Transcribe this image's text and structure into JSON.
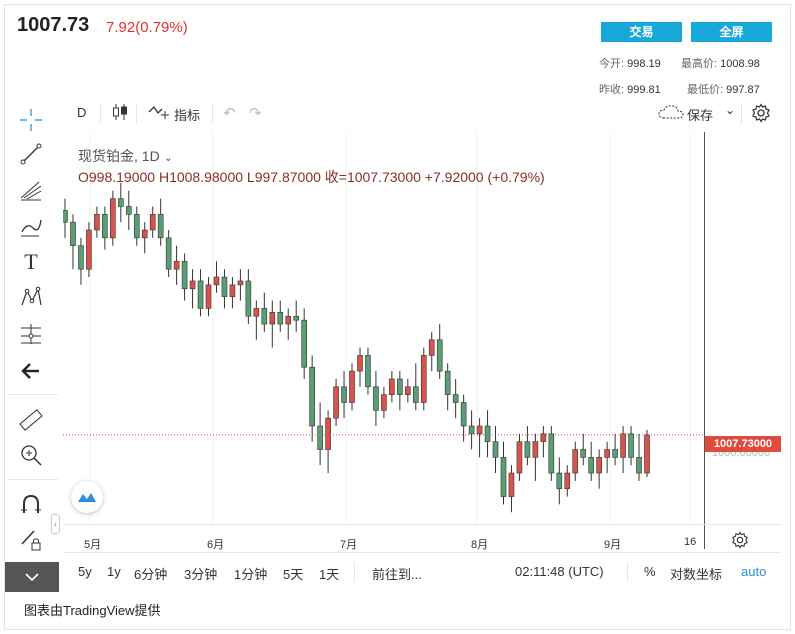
{
  "header": {
    "price": "1007.73",
    "change": "7.92(0.79%)",
    "trade_button": "交易",
    "fullscreen_button": "全屏",
    "stats": {
      "open_label": "今开:",
      "open_value": "998.19",
      "high_label": "最高价:",
      "high_value": "1008.98",
      "prev_close_label": "昨收:",
      "prev_close_value": "999.81",
      "low_label": "最低价:",
      "low_value": "997.87"
    }
  },
  "toolbar": {
    "interval": "D",
    "indicators": "指标",
    "save": "保存"
  },
  "legend": {
    "title": "现货铂金, 1D",
    "ohlc": "O998.19000  H1008.98000  L997.87000  收=1007.73000  +7.92000 (+0.79%)"
  },
  "price_axis": {
    "last_price_tag": "1007.73000",
    "hidden_price": "1000.00000"
  },
  "x_axis_ticks": [
    "5月",
    "6月",
    "7月",
    "8月",
    "9月",
    "16"
  ],
  "bottom_bar": {
    "ranges": [
      "5y",
      "1y",
      "6分钟",
      "3分钟",
      "1分钟",
      "5天",
      "1天"
    ],
    "goto": "前往到...",
    "clock": "02:11:48 (UTC)",
    "percent": "%",
    "log": "对数坐标",
    "auto": "auto"
  },
  "credit": "图表由TradingView提供",
  "colors": {
    "up": "#d9534a",
    "down": "#5b9e74",
    "accent_blue": "#17a7d8",
    "price_tag": "#e04b3d"
  },
  "chart_data": {
    "type": "candlestick",
    "x_ticks": [
      "5月",
      "6月",
      "7月",
      "8月",
      "9月",
      "16"
    ],
    "ylim": [
      985,
      1085
    ],
    "last_price": 1007.73,
    "ohlc": [
      [
        1065,
        1068,
        1058,
        1062
      ],
      [
        1062,
        1064,
        1050,
        1056
      ],
      [
        1056,
        1058,
        1046,
        1050
      ],
      [
        1050,
        1062,
        1048,
        1060
      ],
      [
        1060,
        1066,
        1058,
        1064
      ],
      [
        1064,
        1066,
        1055,
        1058
      ],
      [
        1058,
        1070,
        1056,
        1068
      ],
      [
        1068,
        1072,
        1062,
        1066
      ],
      [
        1066,
        1070,
        1060,
        1064
      ],
      [
        1064,
        1066,
        1056,
        1058
      ],
      [
        1058,
        1062,
        1054,
        1060
      ],
      [
        1060,
        1066,
        1058,
        1064
      ],
      [
        1064,
        1068,
        1056,
        1058
      ],
      [
        1058,
        1060,
        1048,
        1050
      ],
      [
        1050,
        1056,
        1046,
        1052
      ],
      [
        1052,
        1054,
        1042,
        1045
      ],
      [
        1045,
        1050,
        1040,
        1047
      ],
      [
        1047,
        1050,
        1038,
        1040
      ],
      [
        1040,
        1048,
        1038,
        1046
      ],
      [
        1046,
        1052,
        1044,
        1048
      ],
      [
        1048,
        1050,
        1040,
        1043
      ],
      [
        1043,
        1048,
        1040,
        1046
      ],
      [
        1046,
        1050,
        1042,
        1047
      ],
      [
        1047,
        1050,
        1036,
        1038
      ],
      [
        1038,
        1042,
        1032,
        1040
      ],
      [
        1040,
        1044,
        1034,
        1036
      ],
      [
        1036,
        1042,
        1030,
        1039
      ],
      [
        1039,
        1042,
        1034,
        1036
      ],
      [
        1036,
        1040,
        1032,
        1038
      ],
      [
        1038,
        1042,
        1034,
        1037
      ],
      [
        1037,
        1040,
        1022,
        1025
      ],
      [
        1025,
        1028,
        1006,
        1010
      ],
      [
        1010,
        1016,
        1000,
        1004
      ],
      [
        1004,
        1014,
        998,
        1012
      ],
      [
        1012,
        1022,
        1010,
        1020
      ],
      [
        1020,
        1024,
        1012,
        1016
      ],
      [
        1016,
        1026,
        1014,
        1024
      ],
      [
        1024,
        1030,
        1020,
        1028
      ],
      [
        1028,
        1030,
        1018,
        1020
      ],
      [
        1020,
        1024,
        1010,
        1014
      ],
      [
        1014,
        1020,
        1012,
        1018
      ],
      [
        1018,
        1024,
        1016,
        1022
      ],
      [
        1022,
        1024,
        1014,
        1018
      ],
      [
        1018,
        1022,
        1016,
        1020
      ],
      [
        1020,
        1026,
        1014,
        1016
      ],
      [
        1016,
        1030,
        1014,
        1028
      ],
      [
        1028,
        1034,
        1024,
        1032
      ],
      [
        1032,
        1036,
        1022,
        1024
      ],
      [
        1024,
        1026,
        1014,
        1018
      ],
      [
        1018,
        1022,
        1012,
        1016
      ],
      [
        1016,
        1018,
        1006,
        1010
      ],
      [
        1010,
        1014,
        1004,
        1008
      ],
      [
        1008,
        1012,
        1002,
        1010
      ],
      [
        1010,
        1014,
        1002,
        1006
      ],
      [
        1006,
        1010,
        998,
        1002
      ],
      [
        1002,
        1006,
        990,
        992
      ],
      [
        992,
        1000,
        988,
        998
      ],
      [
        998,
        1008,
        996,
        1006
      ],
      [
        1006,
        1010,
        1000,
        1002
      ],
      [
        1002,
        1008,
        996,
        1006
      ],
      [
        1006,
        1010,
        1002,
        1008
      ],
      [
        1008,
        1010,
        996,
        998
      ],
      [
        998,
        1002,
        990,
        994
      ],
      [
        994,
        1000,
        992,
        998
      ],
      [
        998,
        1006,
        996,
        1004
      ],
      [
        1004,
        1008,
        1000,
        1002
      ],
      [
        1002,
        1006,
        996,
        998
      ],
      [
        998,
        1004,
        994,
        1002
      ],
      [
        1002,
        1006,
        998,
        1004
      ],
      [
        1004,
        1008,
        1000,
        1002
      ],
      [
        1002,
        1010,
        998,
        1008
      ],
      [
        1008,
        1010,
        1000,
        1002
      ],
      [
        1002,
        1008,
        996,
        998
      ],
      [
        998,
        1009,
        997,
        1007.73
      ]
    ]
  }
}
